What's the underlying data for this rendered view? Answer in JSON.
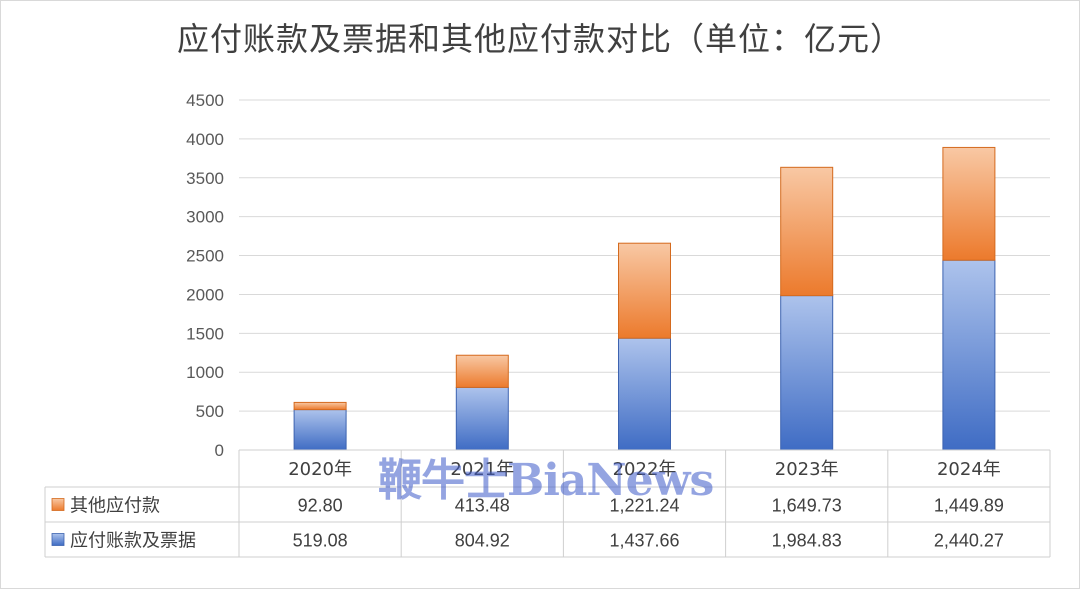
{
  "chart_data": {
    "type": "bar",
    "stacked": true,
    "title": "应付账款及票据和其他应付款对比（单位：亿元）",
    "categories": [
      "2020年",
      "2021年",
      "2022年",
      "2023年",
      "2024年"
    ],
    "series": [
      {
        "name": "应付账款及票据",
        "values": [
          519.08,
          804.92,
          1437.66,
          1984.83,
          2440.27
        ],
        "labels": [
          "519.08",
          "804.92",
          "1,437.66",
          "1,984.83",
          "2,440.27"
        ],
        "color": "#4472c4"
      },
      {
        "name": "其他应付款",
        "values": [
          92.8,
          413.48,
          1221.24,
          1649.73,
          1449.89
        ],
        "labels": [
          "92.80",
          "413.48",
          "1,221.24",
          "1,649.73",
          "1,449.89"
        ],
        "color": "#ed7d31"
      }
    ],
    "ylim": [
      0,
      4500
    ],
    "yticks": [
      0,
      500,
      1000,
      1500,
      2000,
      2500,
      3000,
      3500,
      4000,
      4500
    ],
    "grid": true,
    "data_table": true
  },
  "watermark": "鞭牛士BiaNews"
}
